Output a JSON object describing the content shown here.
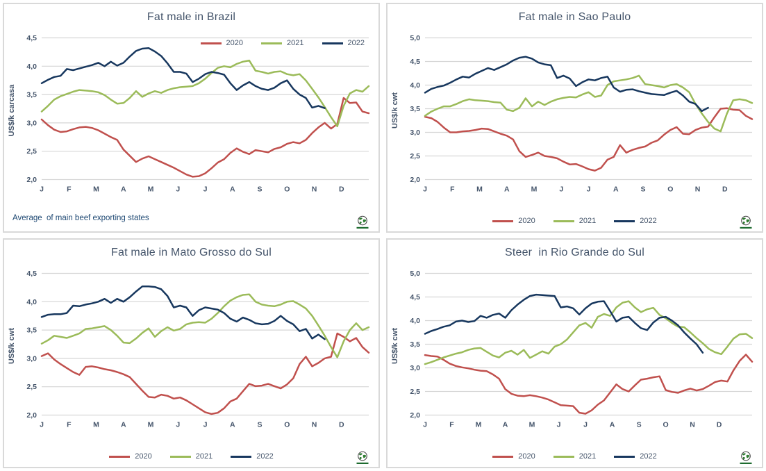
{
  "colors": {
    "series_2020": "#C0504D",
    "series_2021": "#9BBB59",
    "series_2022": "#17375E",
    "title_text": "#44546A",
    "axis_text": "#44546A",
    "footnote_text": "#1F4973",
    "gridline": "#D6D6D6",
    "panel_border": "#D9D9D9"
  },
  "chart_data": [
    {
      "type": "line",
      "title": "Fat male in Brazil",
      "ylabel": "US$/k carcasa",
      "ylim": [
        2.0,
        4.5
      ],
      "ytick_step": 0.5,
      "ytick_labels": [
        "2,0",
        "2,5",
        "3,0",
        "3,5",
        "4,0",
        "4,5"
      ],
      "x_months": [
        "J",
        "F",
        "M",
        "A",
        "M",
        "J",
        "J",
        "A",
        "S",
        "O",
        "N",
        "D"
      ],
      "grid": true,
      "legend_position": "inside-top-right",
      "footnote": "Average  of main beef exporting states",
      "series": [
        {
          "name": "2020",
          "color": "#C0504D",
          "values": [
            3.06,
            2.96,
            2.88,
            2.84,
            2.85,
            2.89,
            2.92,
            2.93,
            2.91,
            2.87,
            2.81,
            2.75,
            2.7,
            2.53,
            2.42,
            2.31,
            2.37,
            2.41,
            2.36,
            2.31,
            2.26,
            2.21,
            2.15,
            2.09,
            2.05,
            2.06,
            2.11,
            2.2,
            2.3,
            2.36,
            2.47,
            2.55,
            2.49,
            2.45,
            2.52,
            2.5,
            2.48,
            2.54,
            2.57,
            2.63,
            2.66,
            2.64,
            2.7,
            2.82,
            2.92,
            3.0,
            2.9,
            2.98,
            3.44,
            3.35,
            3.36,
            3.2,
            3.17
          ]
        },
        {
          "name": "2021",
          "color": "#9BBB59",
          "values": [
            3.2,
            3.3,
            3.41,
            3.47,
            3.51,
            3.55,
            3.58,
            3.57,
            3.56,
            3.54,
            3.49,
            3.41,
            3.34,
            3.35,
            3.44,
            3.56,
            3.46,
            3.52,
            3.56,
            3.53,
            3.58,
            3.61,
            3.63,
            3.64,
            3.65,
            3.7,
            3.78,
            3.88,
            3.97,
            4.0,
            3.98,
            4.04,
            4.08,
            4.1,
            3.92,
            3.9,
            3.87,
            3.9,
            3.91,
            3.86,
            3.84,
            3.86,
            3.75,
            3.6,
            3.45,
            3.28,
            3.1,
            2.94,
            3.3,
            3.52,
            3.58,
            3.55,
            3.65
          ]
        },
        {
          "name": "2022",
          "color": "#17375E",
          "values": [
            3.7,
            3.76,
            3.81,
            3.83,
            3.95,
            3.93,
            3.96,
            3.99,
            4.02,
            4.06,
            4.0,
            4.08,
            4.01,
            4.06,
            4.17,
            4.27,
            4.31,
            4.32,
            4.26,
            4.18,
            4.05,
            3.9,
            3.9,
            3.87,
            3.72,
            3.78,
            3.86,
            3.9,
            3.88,
            3.85,
            3.7,
            3.58,
            3.66,
            3.72,
            3.65,
            3.6,
            3.58,
            3.62,
            3.7,
            3.75,
            3.6,
            3.5,
            3.44,
            3.27,
            3.3,
            3.26
          ]
        }
      ]
    },
    {
      "type": "line",
      "title": "Fat male in Sao Paulo",
      "ylabel": "US$/k cwt",
      "ylim": [
        2.0,
        5.0
      ],
      "ytick_step": 0.5,
      "ytick_labels": [
        "2,0",
        "2,5",
        "3,0",
        "3,5",
        "4,0",
        "4,5",
        "5,0"
      ],
      "x_months": [
        "J",
        "F",
        "M",
        "A",
        "M",
        "J",
        "J",
        "A",
        "S",
        "O",
        "N",
        "D"
      ],
      "grid": true,
      "legend_position": "bottom-center",
      "series": [
        {
          "name": "2020",
          "color": "#C0504D",
          "values": [
            3.33,
            3.3,
            3.22,
            3.1,
            3.0,
            3.0,
            3.02,
            3.03,
            3.05,
            3.08,
            3.07,
            3.02,
            2.97,
            2.93,
            2.85,
            2.6,
            2.48,
            2.52,
            2.57,
            2.5,
            2.48,
            2.45,
            2.38,
            2.32,
            2.33,
            2.28,
            2.22,
            2.19,
            2.25,
            2.42,
            2.48,
            2.73,
            2.57,
            2.63,
            2.67,
            2.7,
            2.78,
            2.83,
            2.95,
            3.05,
            3.11,
            2.97,
            2.96,
            3.05,
            3.1,
            3.12,
            3.32,
            3.5,
            3.51,
            3.48,
            3.47,
            3.35,
            3.28
          ]
        },
        {
          "name": "2021",
          "color": "#9BBB59",
          "values": [
            3.35,
            3.44,
            3.5,
            3.55,
            3.55,
            3.6,
            3.66,
            3.7,
            3.68,
            3.67,
            3.66,
            3.64,
            3.63,
            3.48,
            3.45,
            3.52,
            3.72,
            3.55,
            3.65,
            3.58,
            3.65,
            3.7,
            3.73,
            3.75,
            3.74,
            3.8,
            3.85,
            3.75,
            3.78,
            4.0,
            4.08,
            4.1,
            4.12,
            4.15,
            4.2,
            4.02,
            4.0,
            3.98,
            3.95,
            4.0,
            4.02,
            3.95,
            3.85,
            3.6,
            3.4,
            3.22,
            3.08,
            3.02,
            3.4,
            3.68,
            3.7,
            3.68,
            3.62
          ]
        },
        {
          "name": "2022",
          "color": "#17375E",
          "values": [
            3.84,
            3.92,
            3.96,
            3.99,
            4.05,
            4.12,
            4.18,
            4.16,
            4.24,
            4.3,
            4.36,
            4.32,
            4.38,
            4.44,
            4.52,
            4.58,
            4.6,
            4.56,
            4.48,
            4.44,
            4.42,
            4.15,
            4.2,
            4.14,
            3.98,
            4.06,
            4.12,
            4.1,
            4.15,
            4.18,
            3.95,
            3.86,
            3.9,
            3.91,
            3.87,
            3.84,
            3.81,
            3.8,
            3.79,
            3.84,
            3.88,
            3.78,
            3.65,
            3.6,
            3.45,
            3.52
          ]
        }
      ]
    },
    {
      "type": "line",
      "title": "Fat male in Mato Grosso do Sul",
      "ylabel": "US$/k cwt",
      "ylim": [
        2.0,
        4.5
      ],
      "ytick_step": 0.5,
      "ytick_labels": [
        "2,0",
        "2,5",
        "3,0",
        "3,5",
        "4,0",
        "4,5"
      ],
      "x_months": [
        "J",
        "F",
        "M",
        "A",
        "M",
        "J",
        "J",
        "A",
        "S",
        "O",
        "N",
        "D"
      ],
      "grid": true,
      "legend_position": "bottom-center",
      "series": [
        {
          "name": "2020",
          "color": "#C0504D",
          "values": [
            3.04,
            3.09,
            2.98,
            2.9,
            2.83,
            2.76,
            2.71,
            2.85,
            2.86,
            2.84,
            2.81,
            2.79,
            2.76,
            2.72,
            2.67,
            2.55,
            2.43,
            2.32,
            2.31,
            2.36,
            2.34,
            2.29,
            2.31,
            2.26,
            2.19,
            2.12,
            2.05,
            2.02,
            2.04,
            2.12,
            2.24,
            2.29,
            2.42,
            2.55,
            2.51,
            2.52,
            2.55,
            2.51,
            2.47,
            2.54,
            2.65,
            2.9,
            3.03,
            2.86,
            2.92,
            3.0,
            3.03,
            3.44,
            3.38,
            3.3,
            3.36,
            3.2,
            3.1
          ]
        },
        {
          "name": "2021",
          "color": "#9BBB59",
          "values": [
            3.26,
            3.32,
            3.4,
            3.38,
            3.36,
            3.4,
            3.44,
            3.52,
            3.53,
            3.55,
            3.57,
            3.5,
            3.4,
            3.28,
            3.27,
            3.35,
            3.45,
            3.53,
            3.38,
            3.48,
            3.55,
            3.49,
            3.52,
            3.6,
            3.63,
            3.64,
            3.63,
            3.7,
            3.8,
            3.92,
            4.02,
            4.08,
            4.12,
            4.13,
            4.0,
            3.95,
            3.93,
            3.92,
            3.95,
            4.0,
            4.01,
            3.95,
            3.88,
            3.75,
            3.58,
            3.4,
            3.2,
            3.02,
            3.3,
            3.5,
            3.62,
            3.5,
            3.55
          ]
        },
        {
          "name": "2022",
          "color": "#17375E",
          "values": [
            3.73,
            3.77,
            3.78,
            3.78,
            3.8,
            3.93,
            3.92,
            3.95,
            3.97,
            4.0,
            4.05,
            3.98,
            4.05,
            4.0,
            4.08,
            4.18,
            4.27,
            4.27,
            4.26,
            4.22,
            4.1,
            3.9,
            3.93,
            3.9,
            3.75,
            3.85,
            3.9,
            3.88,
            3.86,
            3.8,
            3.7,
            3.65,
            3.72,
            3.68,
            3.62,
            3.6,
            3.61,
            3.66,
            3.75,
            3.66,
            3.6,
            3.48,
            3.52,
            3.35,
            3.42,
            3.34
          ]
        }
      ]
    },
    {
      "type": "line",
      "title": "Steer  in Rio Grande do Sul",
      "ylabel": "US$/k cwt",
      "ylim": [
        2.0,
        5.0
      ],
      "ytick_step": 0.5,
      "ytick_labels": [
        "2,0",
        "2,5",
        "3,0",
        "3,5",
        "4,0",
        "4,5",
        "5,0"
      ],
      "x_months": [
        "J",
        "F",
        "M",
        "A",
        "M",
        "J",
        "J",
        "A",
        "S",
        "O",
        "N",
        "D"
      ],
      "grid": true,
      "legend_position": "bottom-center",
      "series": [
        {
          "name": "2020",
          "color": "#C0504D",
          "values": [
            3.27,
            3.25,
            3.24,
            3.17,
            3.09,
            3.04,
            3.01,
            2.99,
            2.96,
            2.94,
            2.93,
            2.86,
            2.77,
            2.55,
            2.45,
            2.41,
            2.4,
            2.42,
            2.4,
            2.37,
            2.33,
            2.27,
            2.21,
            2.2,
            2.19,
            2.05,
            2.03,
            2.1,
            2.22,
            2.31,
            2.48,
            2.65,
            2.55,
            2.5,
            2.63,
            2.75,
            2.77,
            2.8,
            2.82,
            2.53,
            2.49,
            2.47,
            2.52,
            2.56,
            2.52,
            2.55,
            2.62,
            2.7,
            2.73,
            2.71,
            2.95,
            3.15,
            3.28,
            3.13
          ]
        },
        {
          "name": "2021",
          "color": "#9BBB59",
          "values": [
            3.08,
            3.12,
            3.17,
            3.22,
            3.26,
            3.3,
            3.33,
            3.38,
            3.41,
            3.42,
            3.34,
            3.26,
            3.22,
            3.32,
            3.36,
            3.28,
            3.38,
            3.21,
            3.28,
            3.35,
            3.3,
            3.45,
            3.5,
            3.6,
            3.75,
            3.9,
            3.95,
            3.85,
            4.08,
            4.14,
            4.1,
            4.28,
            4.38,
            4.41,
            4.28,
            4.18,
            4.24,
            4.27,
            4.12,
            4.05,
            3.95,
            3.87,
            3.86,
            3.75,
            3.63,
            3.52,
            3.4,
            3.33,
            3.29,
            3.45,
            3.62,
            3.71,
            3.72,
            3.63
          ]
        },
        {
          "name": "2022",
          "color": "#17375E",
          "values": [
            3.72,
            3.78,
            3.82,
            3.87,
            3.9,
            3.98,
            4.0,
            3.97,
            3.99,
            4.1,
            4.06,
            4.12,
            4.15,
            4.06,
            4.22,
            4.34,
            4.44,
            4.52,
            4.55,
            4.54,
            4.53,
            4.52,
            4.28,
            4.3,
            4.26,
            4.13,
            4.26,
            4.36,
            4.4,
            4.41,
            4.2,
            3.98,
            4.06,
            4.08,
            3.95,
            3.84,
            3.8,
            3.96,
            4.06,
            4.08,
            4.0,
            3.9,
            3.75,
            3.62,
            3.5,
            3.32
          ]
        }
      ]
    }
  ]
}
